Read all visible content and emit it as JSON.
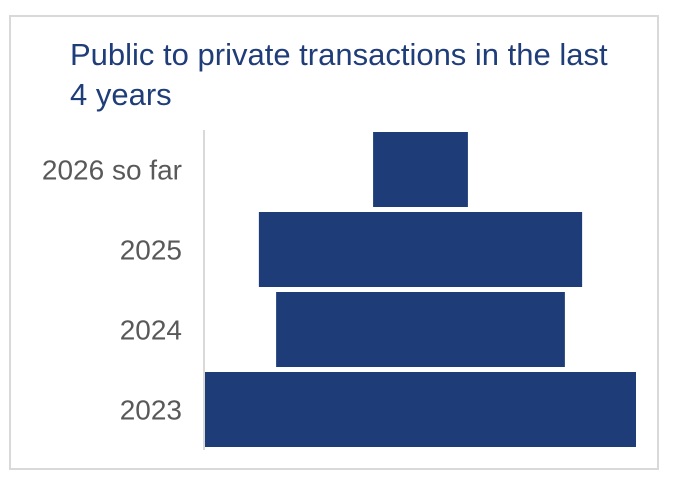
{
  "chart_data": {
    "type": "bar",
    "orientation": "horizontal",
    "style": "centered-funnel",
    "title": "Public to private transactions in the last 4 years",
    "xlabel": "",
    "ylabel": "",
    "categories": [
      "2026 so far",
      "2025",
      "2024",
      "2023"
    ],
    "values": [
      22,
      75,
      67,
      100
    ],
    "value_scale": "relative (no axis or data labels shown)",
    "grid": false,
    "legend": "none",
    "colors": {
      "bar": "#1d3c78",
      "title": "#1f3d78",
      "tick_label": "#595959",
      "axis_line": "#d9d9d9",
      "frame": "#d9d9d9"
    }
  }
}
